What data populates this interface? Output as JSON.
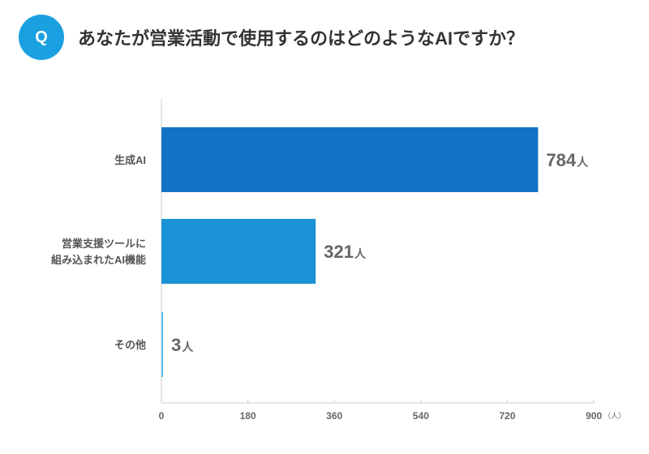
{
  "header": {
    "badge": "Q",
    "question": "あなたが営業活動で使用するのはどのようなAIですか？"
  },
  "chart_data": {
    "type": "bar",
    "orientation": "horizontal",
    "categories": [
      [
        "生成AI"
      ],
      [
        "営業支援ツールに",
        "組み込まれたAI機能"
      ],
      [
        "その他"
      ]
    ],
    "values": [
      784,
      321,
      3
    ],
    "value_unit": "人",
    "bar_colors": [
      "#1273c7",
      "#1a93d6",
      "#5bbbe6"
    ],
    "xlim": [
      0,
      900
    ],
    "xticks": [
      0,
      180,
      360,
      540,
      720,
      900
    ],
    "x_unit": "（人）",
    "grid": false
  }
}
